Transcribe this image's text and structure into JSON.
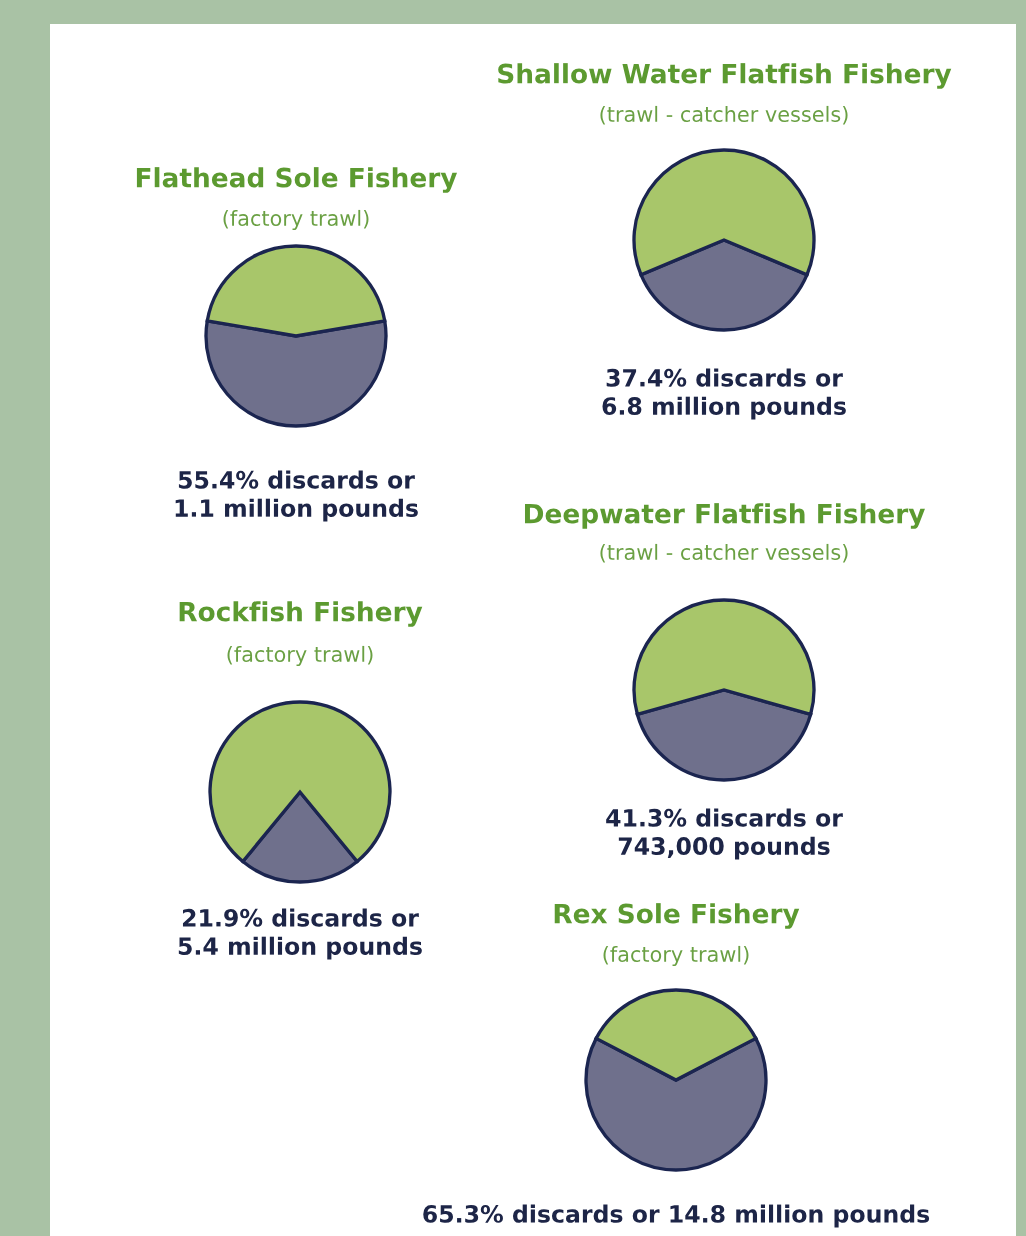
{
  "chart_data": [
    {
      "type": "pie",
      "title": "Shallow Water Flatfish Fishery",
      "subtitle": "(trawl - catcher vessels)",
      "categories": [
        null,
        null
      ],
      "values": [
        37.4,
        62.6
      ],
      "colors": [
        "#6f708c",
        "#a8c66a"
      ],
      "annotations": [
        "37.4% discards or\n6.8 million pounds"
      ]
    },
    {
      "type": "pie",
      "title": "Flathead Sole Fishery",
      "subtitle": "(factory trawl)",
      "categories": [
        null,
        null
      ],
      "values": [
        55.4,
        44.6
      ],
      "colors": [
        "#6f708c",
        "#a8c66a"
      ],
      "annotations": [
        "55.4% discards or\n1.1 million pounds"
      ]
    },
    {
      "type": "pie",
      "title": "Deepwater Flatfish Fishery",
      "subtitle": "(trawl - catcher vessels)",
      "categories": [
        null,
        null
      ],
      "values": [
        41.3,
        58.7
      ],
      "colors": [
        "#6f708c",
        "#a8c66a"
      ],
      "annotations": [
        "41.3% discards or\n743,000 pounds"
      ]
    },
    {
      "type": "pie",
      "title": "Rockfish Fishery",
      "subtitle": "(factory trawl)",
      "categories": [
        null,
        null
      ],
      "values": [
        21.9,
        78.1
      ],
      "colors": [
        "#6f708c",
        "#a8c66a"
      ],
      "annotations": [
        "21.9% discards or\n5.4 million pounds"
      ]
    },
    {
      "type": "pie",
      "title": "Rex Sole Fishery",
      "subtitle": "(factory trawl)",
      "categories": [
        null,
        null
      ],
      "values": [
        65.3,
        34.7
      ],
      "colors": [
        "#6f708c",
        "#a8c66a"
      ],
      "annotations": [
        "65.3% discards or 14.8 million pounds"
      ]
    }
  ]
}
